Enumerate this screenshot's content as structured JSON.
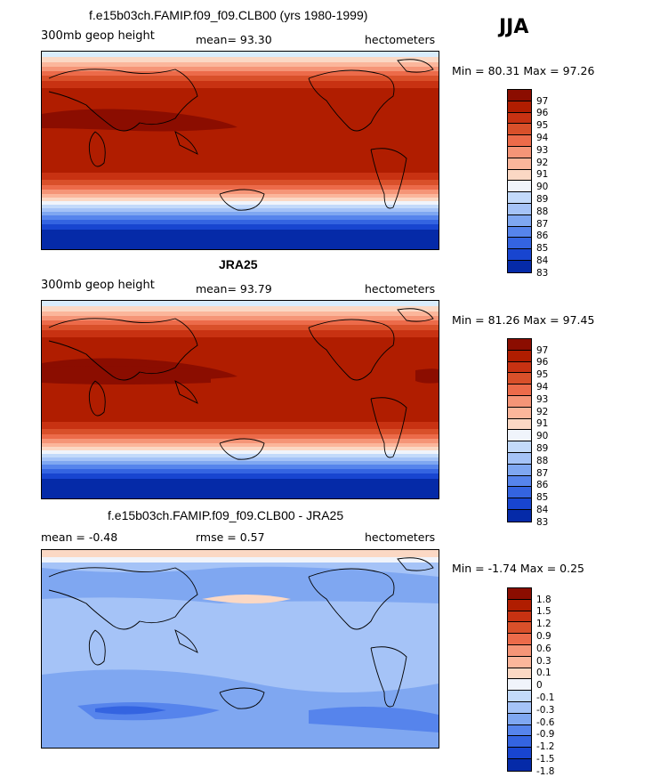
{
  "season": "JJA",
  "panels": [
    {
      "title": "f.e15b03ch.FAMIP.f09_f09.CLB00 (yrs 1980-1999)",
      "left_label": "300mb geop height",
      "mean_label": "mean=  93.30",
      "units": "hectometers",
      "minmax": "Min =  80.31 Max =  97.26",
      "levels": [
        "97",
        "96",
        "95",
        "94",
        "93",
        "92",
        "91",
        "90",
        "89",
        "88",
        "87",
        "86",
        "85",
        "84",
        "83"
      ],
      "colors": [
        "#8b0d00",
        "#b01d00",
        "#c83212",
        "#d9502a",
        "#ec6b4a",
        "#f59577",
        "#fbb69b",
        "#fbd8c4",
        "#f0f4fb",
        "#c3dafa",
        "#a5c3f7",
        "#7fa7f1",
        "#5684ec",
        "#3464e1",
        "#1845d0",
        "#052aa8"
      ],
      "map": {
        "lat_contour_bias": 0
      }
    },
    {
      "title": "JRA25",
      "left_label": "300mb geop height",
      "mean_label": "mean=  93.79",
      "units": "hectometers",
      "minmax": "Min =  81.26 Max =  97.45",
      "levels": [
        "97",
        "96",
        "95",
        "94",
        "93",
        "92",
        "91",
        "90",
        "89",
        "88",
        "87",
        "86",
        "85",
        "84",
        "83"
      ],
      "colors": [
        "#8b0d00",
        "#b01d00",
        "#c83212",
        "#d9502a",
        "#ec6b4a",
        "#f59577",
        "#fbb69b",
        "#fbd8c4",
        "#f0f4fb",
        "#c3dafa",
        "#a5c3f7",
        "#7fa7f1",
        "#5684ec",
        "#3464e1",
        "#1845d0",
        "#052aa8"
      ],
      "map": {
        "lat_contour_bias": 0.5
      }
    },
    {
      "title": "f.e15b03ch.FAMIP.f09_f09.CLB00 - JRA25",
      "left_label": "mean =   -0.48",
      "mean_label": "rmse =    0.57",
      "units": "hectometers",
      "minmax": "Min =  -1.74 Max =    0.25",
      "levels": [
        "1.8",
        "1.5",
        "1.2",
        "0.9",
        "0.6",
        "0.3",
        "0.1",
        "0",
        "-0.1",
        "-0.3",
        "-0.6",
        "-0.9",
        "-1.2",
        "-1.5",
        "-1.8"
      ],
      "colors": [
        "#8b0d00",
        "#b01d00",
        "#c83212",
        "#d9502a",
        "#ec6b4a",
        "#f59577",
        "#fbb69b",
        "#fbd8c4",
        "#f0f4fb",
        "#c3dafa",
        "#a5c3f7",
        "#7fa7f1",
        "#5684ec",
        "#3464e1",
        "#1845d0",
        "#052aa8"
      ],
      "map": {
        "lat_contour_bias": 0
      }
    }
  ]
}
